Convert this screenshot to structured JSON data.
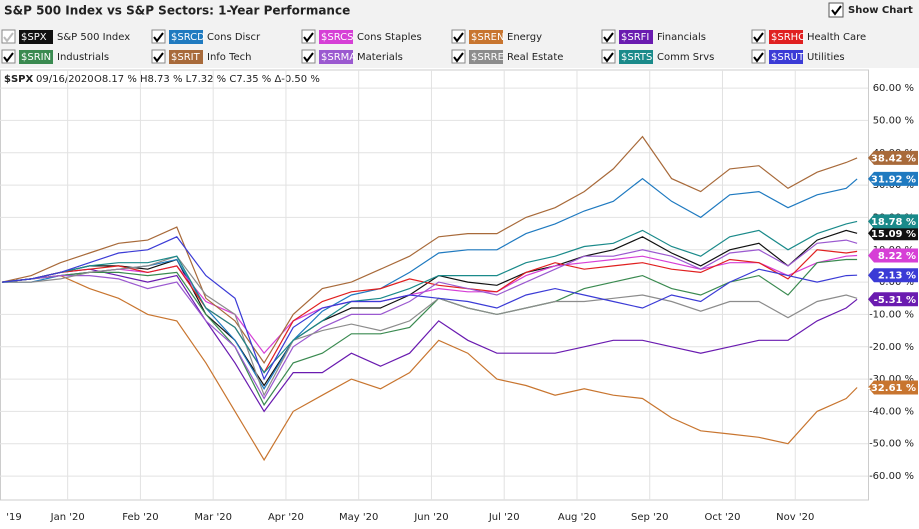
{
  "header": {
    "title": "S&P 500 Index vs S&P Sectors: 1-Year Performance",
    "show_chart": "Show Chart"
  },
  "info": {
    "symbol": "$SPX",
    "date": "09/16/2020",
    "ohlc": "O8.17 % H8.73 % L7.32 % C7.35 % Δ-0.50 %"
  },
  "chart_data": {
    "type": "line",
    "grid": true,
    "x": [
      0.1,
      0.5,
      0.9,
      1.3,
      1.7,
      2.1,
      2.5,
      2.9,
      3.3,
      3.7,
      4.1,
      4.5,
      4.9,
      5.3,
      5.7,
      6.1,
      6.5,
      6.9,
      7.3,
      7.7,
      8.1,
      8.5,
      8.9,
      9.3,
      9.7,
      10.1,
      10.5,
      10.9,
      11.3,
      11.7,
      11.85
    ],
    "xlim": [
      0.07,
      12.0
    ],
    "xticks": [
      {
        "value": 0,
        "label": "'19"
      },
      {
        "value": 1,
        "label": "Jan '20"
      },
      {
        "value": 2,
        "label": "Feb '20"
      },
      {
        "value": 3,
        "label": "Mar '20"
      },
      {
        "value": 4,
        "label": "Apr '20"
      },
      {
        "value": 5,
        "label": "May '20"
      },
      {
        "value": 6,
        "label": "Jun '20"
      },
      {
        "value": 7,
        "label": "Jul '20"
      },
      {
        "value": 8,
        "label": "Aug '20"
      },
      {
        "value": 9,
        "label": "Sep '20"
      },
      {
        "value": 10,
        "label": "Oct '20"
      },
      {
        "value": 11,
        "label": "Nov '20"
      }
    ],
    "ylim": [
      -67.4,
      65.6
    ],
    "yticks": [
      {
        "value": 60,
        "label": "60.00 %"
      },
      {
        "value": 50,
        "label": "50.00 %"
      },
      {
        "value": 40,
        "label": "40.00 %"
      },
      {
        "value": 30,
        "label": "30.00 %"
      },
      {
        "value": 20,
        "label": "20.00 %"
      },
      {
        "value": 10,
        "label": "10.00 %"
      },
      {
        "value": 0,
        "label": "0.00 %"
      },
      {
        "value": -10,
        "label": "-10.00 %"
      },
      {
        "value": -20,
        "label": "-20.00 %"
      },
      {
        "value": -30,
        "label": "-30.00 %"
      },
      {
        "value": -40,
        "label": "-40.00 %"
      },
      {
        "value": -50,
        "label": "-50.00 %"
      },
      {
        "value": -60,
        "label": "-60.00 %"
      }
    ],
    "series": [
      {
        "symbol": "$SPX",
        "name": "S&P 500 Index",
        "color": "#111111",
        "values": [
          0,
          1,
          3,
          5,
          5,
          4,
          7,
          -10,
          -18,
          -32,
          -18,
          -12,
          -8,
          -8,
          -4,
          2,
          0,
          -1,
          3,
          5,
          8,
          10,
          14,
          9,
          5,
          10,
          12,
          5,
          13,
          16,
          15.09
        ],
        "end_label": "15.09 %"
      },
      {
        "symbol": "$SRCD",
        "name": "Cons Discr",
        "color": "#1f7ac0",
        "values": [
          0,
          0,
          2,
          3,
          4,
          5,
          7,
          -8,
          -18,
          -33,
          -18,
          -9,
          -4,
          -2,
          3,
          9,
          10,
          10,
          15,
          18,
          22,
          25,
          32,
          25,
          20,
          27,
          28,
          23,
          27,
          29,
          31.92
        ],
        "end_label": "31.92 %"
      },
      {
        "symbol": "$SRCS",
        "name": "Cons Staples",
        "color": "#d63fd6",
        "values": [
          0,
          1,
          2,
          3,
          4,
          3,
          5,
          -6,
          -10,
          -22,
          -12,
          -8,
          -6,
          -6,
          -4,
          -2,
          -3,
          -3,
          2,
          5,
          6,
          7,
          8,
          6,
          4,
          6,
          6,
          2,
          6,
          8,
          8.22
        ],
        "end_label": "8.22 %"
      },
      {
        "symbol": "$SREN",
        "name": "Energy",
        "color": "#c8752f",
        "values": [
          0,
          1,
          2,
          -2,
          -5,
          -10,
          -12,
          -25,
          -40,
          -55,
          -40,
          -35,
          -30,
          -33,
          -28,
          -18,
          -22,
          -30,
          -32,
          -35,
          -33,
          -35,
          -36,
          -42,
          -46,
          -47,
          -48,
          -50,
          -40,
          -36,
          -32.61
        ],
        "end_label": "-32.61 %"
      },
      {
        "symbol": "$SRFI",
        "name": "Financials",
        "color": "#6a1bb0",
        "values": [
          0,
          1,
          3,
          4,
          2,
          0,
          2,
          -12,
          -25,
          -40,
          -28,
          -28,
          -22,
          -26,
          -22,
          -12,
          -18,
          -22,
          -22,
          -22,
          -20,
          -18,
          -18,
          -20,
          -22,
          -20,
          -18,
          -18,
          -12,
          -8,
          -5.31
        ],
        "end_label": "-5.31 %"
      },
      {
        "symbol": "$SRHC",
        "name": "Health Care",
        "color": "#e02020",
        "values": [
          0,
          1,
          3,
          4,
          5,
          3,
          5,
          -8,
          -14,
          -28,
          -12,
          -6,
          -3,
          -2,
          1,
          -1,
          -2,
          -3,
          3,
          6,
          4,
          5,
          6,
          4,
          3,
          7,
          6,
          1,
          10,
          9,
          9.5
        ]
      },
      {
        "symbol": "$SRIN",
        "name": "Industrials",
        "color": "#3a8a50",
        "values": [
          0,
          1,
          2,
          3,
          3,
          2,
          3,
          -10,
          -20,
          -38,
          -25,
          -22,
          -16,
          -16,
          -14,
          -5,
          -8,
          -10,
          -8,
          -6,
          -2,
          0,
          2,
          -2,
          -4,
          0,
          2,
          -4,
          6,
          7,
          7
        ]
      },
      {
        "symbol": "$SRIT",
        "name": "Info Tech",
        "color": "#a86a3a",
        "values": [
          0,
          2,
          6,
          9,
          12,
          13,
          17,
          -5,
          -12,
          -25,
          -10,
          -2,
          0,
          4,
          8,
          14,
          15,
          15,
          20,
          23,
          28,
          35,
          45,
          32,
          28,
          35,
          36,
          29,
          34,
          37,
          38.42
        ],
        "end_label": "38.42 %"
      },
      {
        "symbol": "$SRMA",
        "name": "Materials",
        "color": "#9b59d0",
        "values": [
          0,
          1,
          2,
          2,
          1,
          -2,
          0,
          -12,
          -20,
          -36,
          -20,
          -14,
          -10,
          -10,
          -6,
          0,
          -2,
          -4,
          0,
          4,
          8,
          8,
          10,
          8,
          4,
          9,
          10,
          5,
          12,
          13,
          12
        ]
      },
      {
        "symbol": "$SRRE",
        "name": "Real Estate",
        "color": "#8c8c8c",
        "values": [
          0,
          0,
          1,
          3,
          4,
          5,
          8,
          -4,
          -10,
          -35,
          -18,
          -15,
          -13,
          -15,
          -12,
          -5,
          -8,
          -10,
          -8,
          -6,
          -6,
          -5,
          -4,
          -6,
          -9,
          -6,
          -6,
          -11,
          -6,
          -4,
          -5
        ]
      },
      {
        "symbol": "$SRTS",
        "name": "Comm Srvs",
        "color": "#1a8a8a",
        "values": [
          0,
          1,
          3,
          5,
          6,
          6,
          8,
          -8,
          -14,
          -28,
          -18,
          -12,
          -6,
          -5,
          -2,
          2,
          2,
          2,
          6,
          8,
          11,
          12,
          16,
          11,
          8,
          14,
          16,
          10,
          15,
          18,
          18.78
        ],
        "end_label": "18.78 %"
      },
      {
        "symbol": "$SRUT",
        "name": "Utilities",
        "color": "#3b3bd6",
        "values": [
          0,
          1,
          3,
          6,
          9,
          10,
          14,
          2,
          -5,
          -30,
          -14,
          -8,
          -6,
          -6,
          -4,
          -5,
          -6,
          -8,
          -4,
          -2,
          -4,
          -6,
          -8,
          -4,
          -6,
          0,
          4,
          2,
          0,
          2,
          2.13
        ],
        "end_label": "2.13 %"
      }
    ]
  }
}
